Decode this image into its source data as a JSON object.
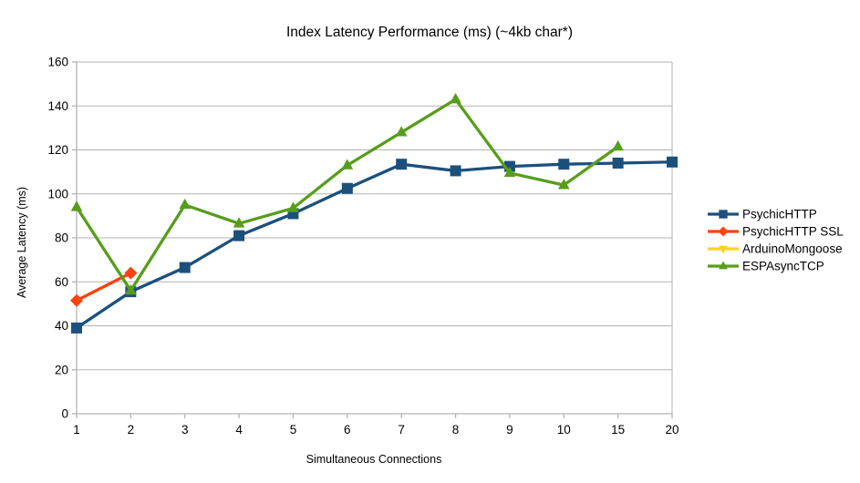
{
  "chart_data": {
    "type": "line",
    "title": "Index Latency Performance (ms) (~4kb char*)",
    "xlabel": "Simultaneous Connections",
    "ylabel": "Average Latency (ms)",
    "categories": [
      "1",
      "2",
      "3",
      "4",
      "5",
      "6",
      "7",
      "8",
      "9",
      "10",
      "15",
      "20"
    ],
    "ylim": [
      0,
      160
    ],
    "yticks": [
      0,
      20,
      40,
      60,
      80,
      100,
      120,
      140,
      160
    ],
    "grid": "horizontal",
    "legend_position": "right",
    "series": [
      {
        "name": "PsychicHTTP",
        "color": "#1B507D",
        "marker": "square",
        "values": [
          39,
          55.5,
          66.5,
          81,
          91,
          102.5,
          113.5,
          110.5,
          112.5,
          113.5,
          114,
          114.5
        ]
      },
      {
        "name": "PsychicHTTP SSL",
        "color": "#FF420E",
        "marker": "diamond",
        "values": [
          51.5,
          64,
          null,
          null,
          null,
          null,
          null,
          null,
          null,
          null,
          null,
          null
        ]
      },
      {
        "name": "ArduinoMongoose",
        "color": "#FFD320",
        "marker": "triangle-down",
        "values": [
          null,
          null,
          null,
          null,
          null,
          null,
          null,
          null,
          null,
          null,
          null,
          null
        ]
      },
      {
        "name": "ESPAsyncTCP",
        "color": "#579D1C",
        "marker": "triangle-up",
        "values": [
          94,
          56,
          95,
          86.5,
          93.5,
          113,
          128,
          143,
          109.5,
          104,
          121.5,
          null
        ]
      }
    ],
    "colors": {
      "gridline": "#b3b3b3",
      "axis": "#b3b3b3",
      "text": "#000000",
      "background": "#ffffff"
    }
  }
}
